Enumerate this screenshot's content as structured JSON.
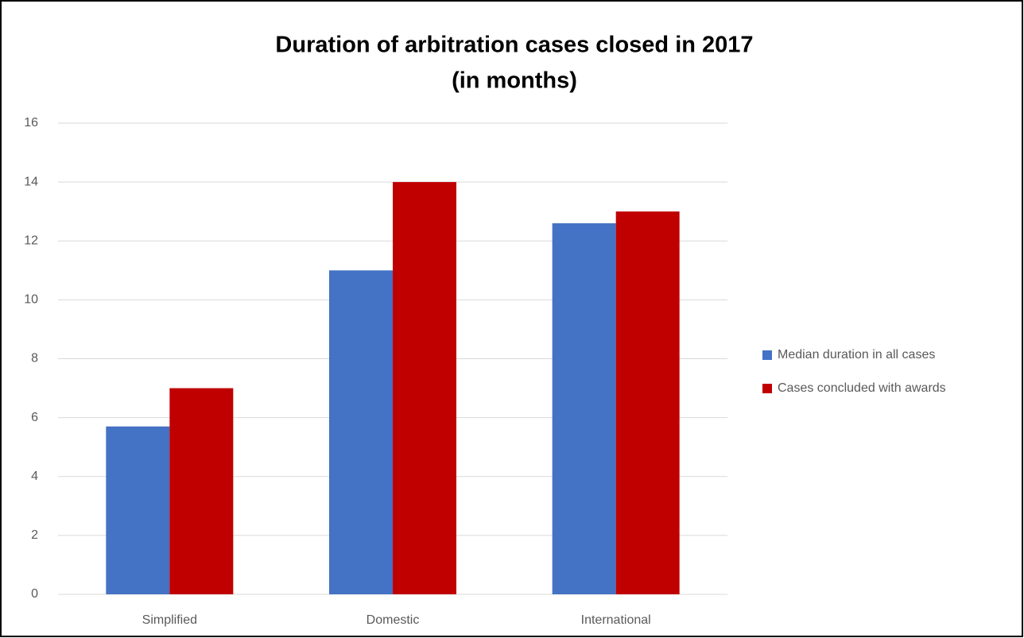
{
  "chart_data": {
    "type": "bar",
    "title": [
      "Duration of arbitration cases closed in 2017",
      "(in months)"
    ],
    "categories": [
      "Simplified",
      "Domestic",
      "International"
    ],
    "series": [
      {
        "name": "Median duration in all cases",
        "color": "#4472c4",
        "values": [
          5.7,
          11,
          12.6
        ]
      },
      {
        "name": "Cases concluded with awards",
        "color": "#c00000",
        "values": [
          7,
          14,
          13
        ]
      }
    ],
    "ylim": [
      0,
      16
    ],
    "yticks": [
      0,
      2,
      4,
      6,
      8,
      10,
      12,
      14,
      16
    ],
    "grid": true,
    "legend": "right"
  }
}
